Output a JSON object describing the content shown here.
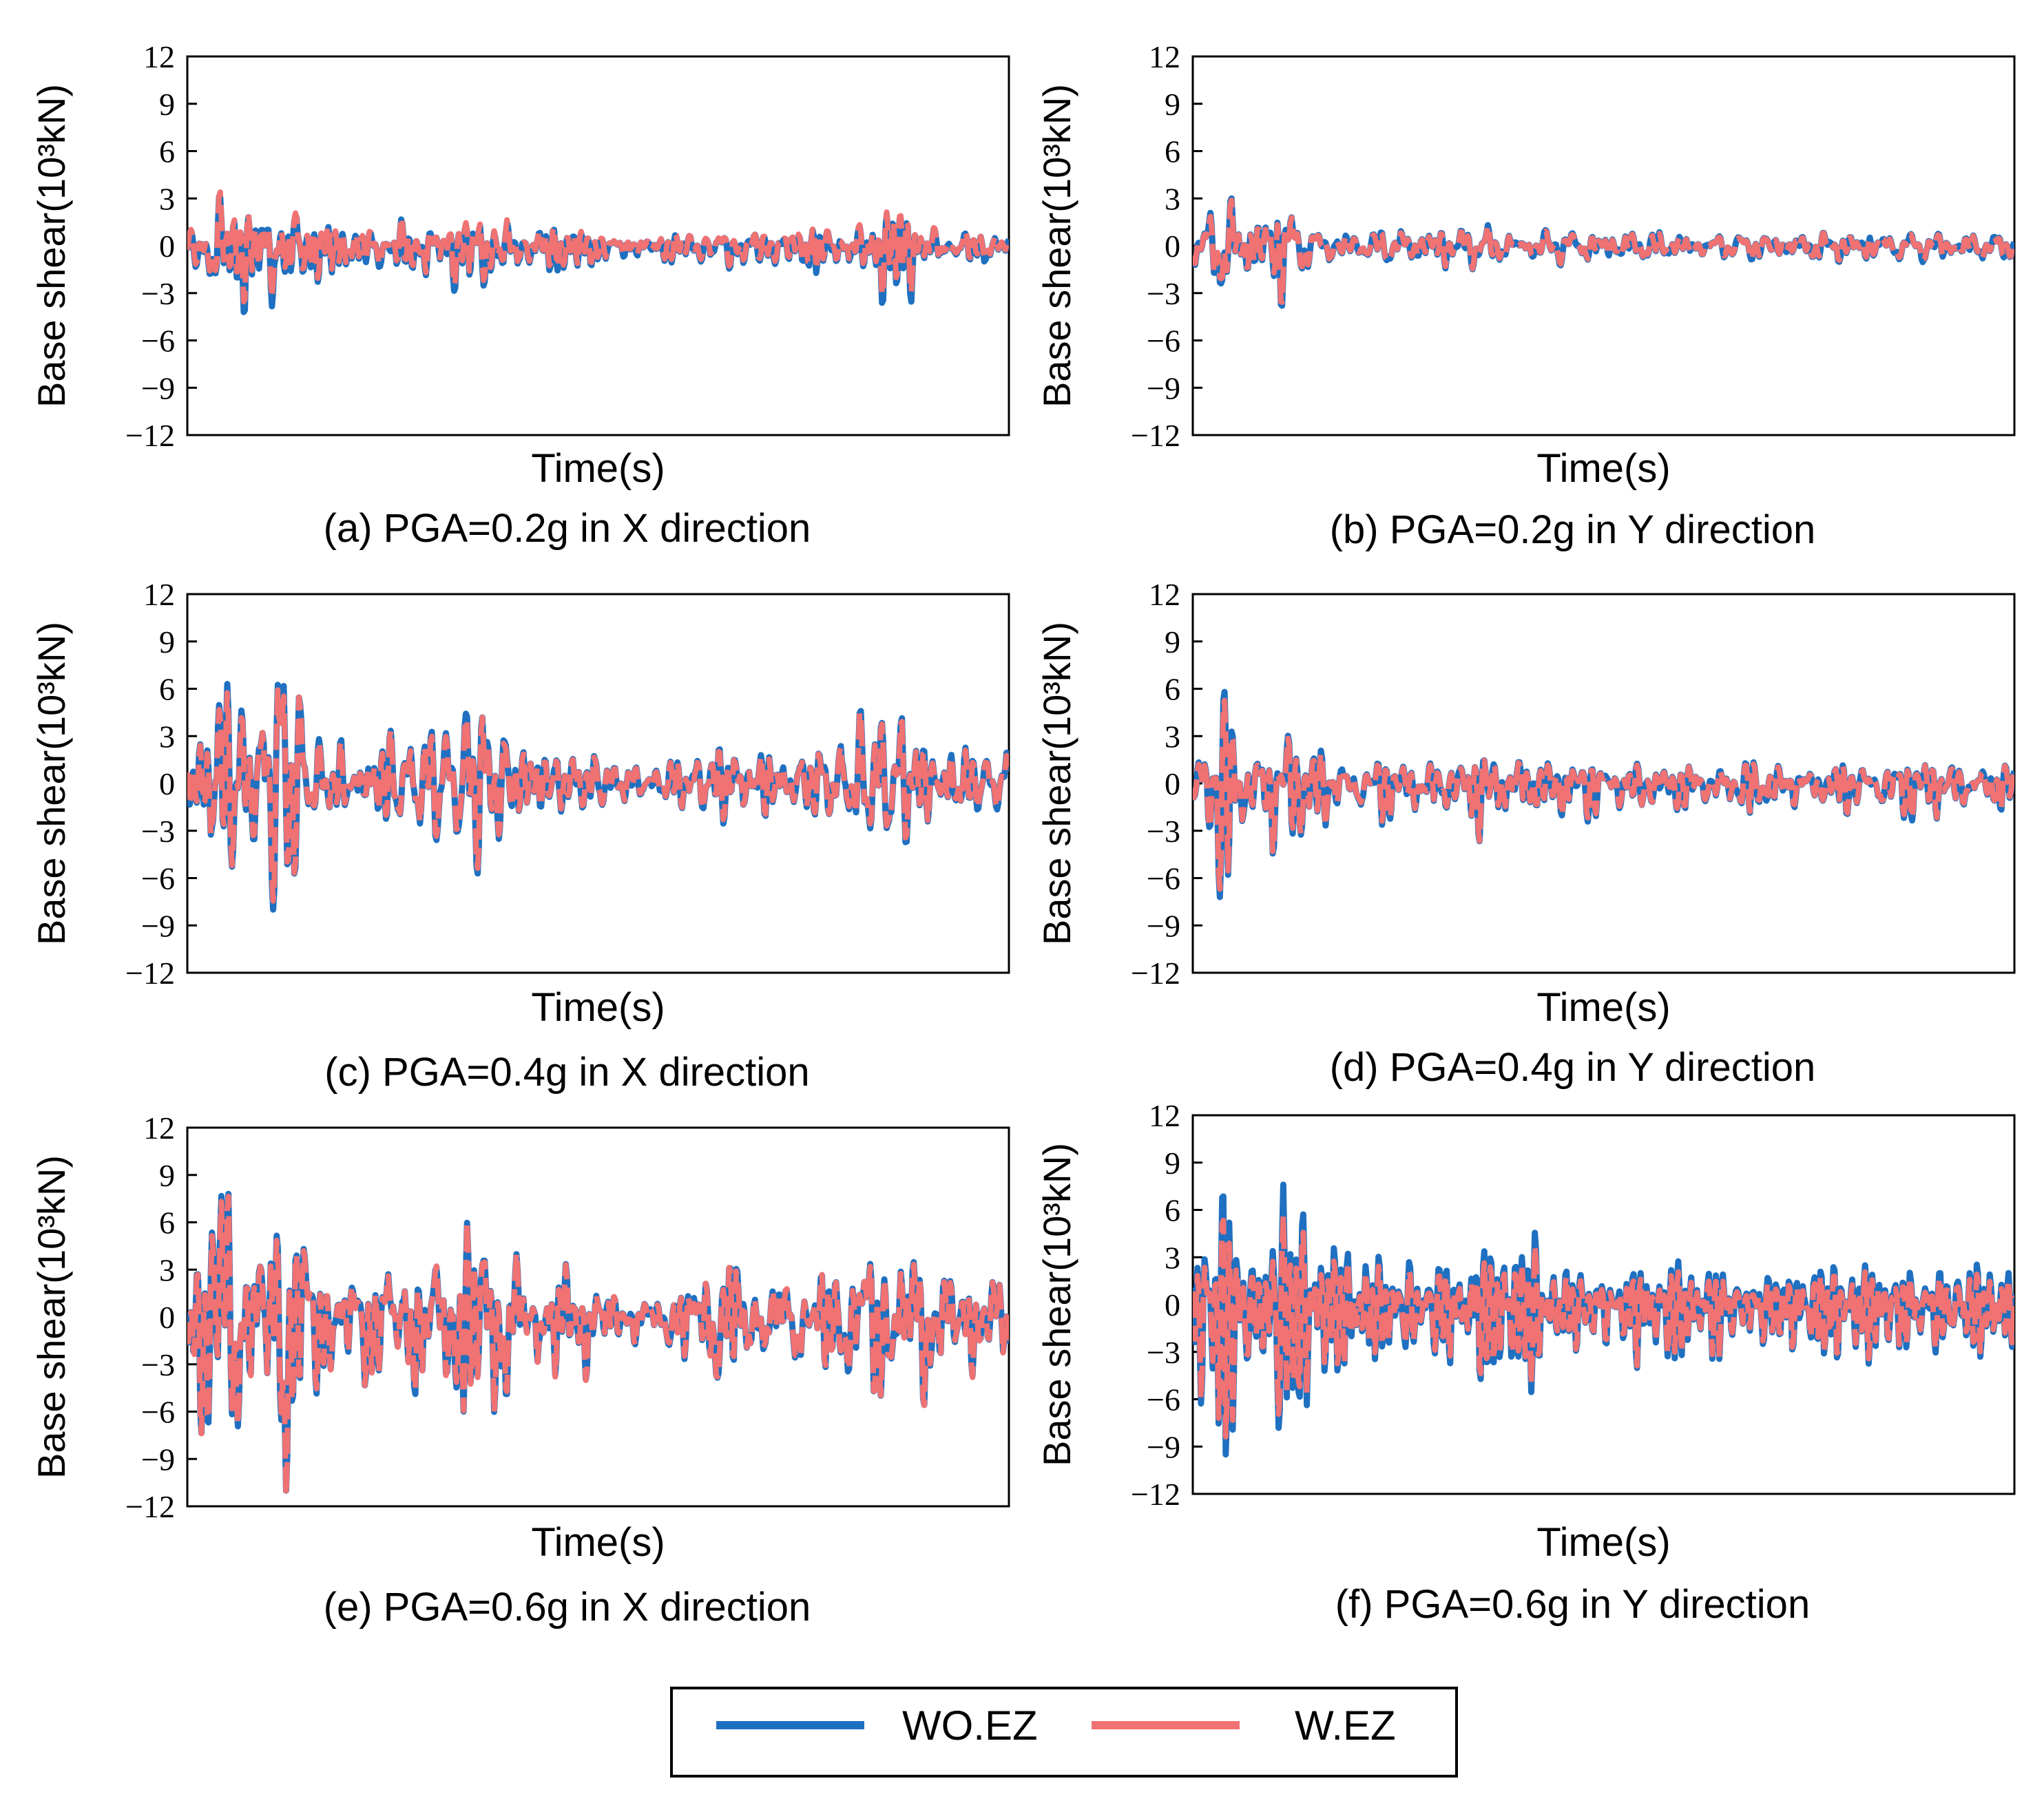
{
  "figure": {
    "legend": [
      {
        "label": "WO.EZ",
        "color": "#1f70c1"
      },
      {
        "label": "W.EZ",
        "color": "#f07272"
      }
    ]
  },
  "chart_data": [
    {
      "type": "line",
      "panel": "a",
      "caption": "(a) PGA=0.2g in X direction",
      "xlabel": "Time(s)",
      "ylabel": "Base shear(10³kN)",
      "ylim": [
        -12,
        12
      ],
      "yticks": [
        12,
        9,
        6,
        3,
        0,
        -3,
        -6,
        -9,
        -12
      ],
      "direction": "X",
      "pga": "0.2g",
      "series": [
        {
          "name": "WO.EZ",
          "peak_max": 3.1,
          "peak_min": -4.2
        },
        {
          "name": "W.EZ",
          "peak_max": 3.3,
          "peak_min": -3.6
        }
      ]
    },
    {
      "type": "line",
      "panel": "b",
      "caption": "(b) PGA=0.2g in Y direction",
      "xlabel": "Time(s)",
      "ylabel": "Base shear(10³kN)",
      "ylim": [
        -12,
        12
      ],
      "yticks": [
        12,
        9,
        6,
        3,
        0,
        -3,
        -6,
        -9,
        -12
      ],
      "direction": "Y",
      "pga": "0.2g",
      "series": [
        {
          "name": "WO.EZ",
          "peak_max": 3.0,
          "peak_min": -3.8
        },
        {
          "name": "W.EZ",
          "peak_max": 2.8,
          "peak_min": -3.5
        }
      ]
    },
    {
      "type": "line",
      "panel": "c",
      "caption": "(c) PGA=0.4g in X direction",
      "xlabel": "Time(s)",
      "ylabel": "Base shear(10³kN)",
      "ylim": [
        -12,
        12
      ],
      "yticks": [
        12,
        9,
        6,
        3,
        0,
        -3,
        -6,
        -9,
        -12
      ],
      "direction": "X",
      "pga": "0.4g",
      "series": [
        {
          "name": "WO.EZ",
          "peak_max": 6.3,
          "peak_min": -8.0
        },
        {
          "name": "W.EZ",
          "peak_max": 6.0,
          "peak_min": -7.5
        }
      ]
    },
    {
      "type": "line",
      "panel": "d",
      "caption": "(d) PGA=0.4g in Y direction",
      "xlabel": "Time(s)",
      "ylabel": "Base shear(10³kN)",
      "ylim": [
        -12,
        12
      ],
      "yticks": [
        12,
        9,
        6,
        3,
        0,
        -3,
        -6,
        -9,
        -12
      ],
      "direction": "Y",
      "pga": "0.4g",
      "series": [
        {
          "name": "WO.EZ",
          "peak_max": 5.8,
          "peak_min": -7.2
        },
        {
          "name": "W.EZ",
          "peak_max": 5.5,
          "peak_min": -6.8
        }
      ]
    },
    {
      "type": "line",
      "panel": "e",
      "caption": "(e) PGA=0.6g in X direction",
      "xlabel": "Time(s)",
      "ylabel": "Base shear(10³kN)",
      "ylim": [
        -12,
        12
      ],
      "yticks": [
        12,
        9,
        6,
        3,
        0,
        -3,
        -6,
        -9,
        -12
      ],
      "direction": "X",
      "pga": "0.6g",
      "series": [
        {
          "name": "WO.EZ",
          "peak_max": 7.8,
          "peak_min": -11.0
        },
        {
          "name": "W.EZ",
          "peak_max": 7.6,
          "peak_min": -10.8
        }
      ]
    },
    {
      "type": "line",
      "panel": "f",
      "caption": "(f) PGA=0.6g in Y direction",
      "xlabel": "Time(s)",
      "ylabel": "Base shear(10³kN)",
      "ylim": [
        -12,
        12
      ],
      "yticks": [
        12,
        9,
        6,
        3,
        0,
        -3,
        -6,
        -9,
        -12
      ],
      "direction": "Y",
      "pga": "0.6g",
      "series": [
        {
          "name": "WO.EZ",
          "peak_max": 7.6,
          "peak_min": -9.5
        },
        {
          "name": "W.EZ",
          "peak_max": 6.0,
          "peak_min": -8.8
        }
      ]
    }
  ]
}
